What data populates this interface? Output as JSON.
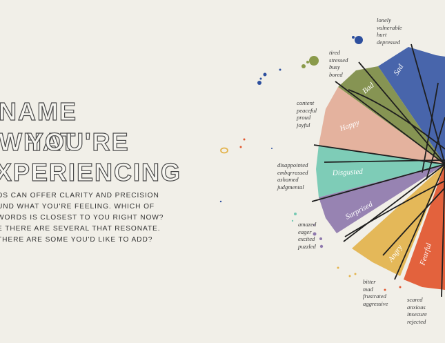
{
  "title_lines": [
    "NAME WHAT",
    "YOU'RE",
    "XPERIENCING"
  ],
  "body_lines": [
    "DS CAN OFFER CLARITY AND PRECISION",
    "UND WHAT YOU'RE FEELING. WHICH OF",
    "WORDS IS CLOSEST TO YOU RIGHT NOW?",
    "E THERE ARE SEVERAL THAT RESONATE.",
    " THERE ARE SOME YOU'D LIKE TO ADD?"
  ],
  "emotions": [
    {
      "core": "Sad",
      "color": "#3b5aa6",
      "words": [
        "lonely",
        "vulnerable",
        "hurt",
        "depressed"
      ]
    },
    {
      "core": "Bad",
      "color": "#7d8c45",
      "words": [
        "tired",
        "stressed",
        "busy",
        "bored"
      ]
    },
    {
      "core": "Happy",
      "color": "#e3ac97",
      "words": [
        "content",
        "peaceful",
        "proud",
        "joyful"
      ]
    },
    {
      "core": "Disgusted",
      "color": "#74c9b2",
      "words": [
        "disappointed",
        "embqrrassed",
        "ashamed",
        "judgmental"
      ]
    },
    {
      "core": "Surprised",
      "color": "#8f79ad",
      "words": [
        "amazed",
        "eager",
        "excited",
        "puzzled"
      ]
    },
    {
      "core": "Angry",
      "color": "#e3b34c",
      "words": [
        "bitter",
        "mad",
        "frustrated",
        "aggressive"
      ]
    },
    {
      "core": "Fearful",
      "color": "#e2572f",
      "words": [
        "scared",
        "anxious",
        "insecure",
        "rejected"
      ]
    }
  ]
}
